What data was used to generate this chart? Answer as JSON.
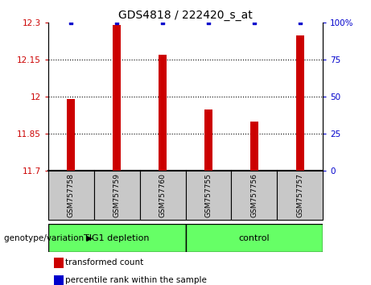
{
  "title": "GDS4818 / 222420_s_at",
  "samples": [
    "GSM757758",
    "GSM757759",
    "GSM757760",
    "GSM757755",
    "GSM757756",
    "GSM757757"
  ],
  "red_values": [
    11.99,
    12.29,
    12.17,
    11.95,
    11.9,
    12.25
  ],
  "blue_values": [
    100,
    100,
    100,
    100,
    100,
    100
  ],
  "ylim_left": [
    11.7,
    12.3
  ],
  "ylim_right": [
    0,
    100
  ],
  "yticks_left": [
    11.7,
    11.85,
    12.0,
    12.15,
    12.3
  ],
  "yticks_right": [
    0,
    25,
    50,
    75,
    100
  ],
  "ytick_labels_left": [
    "11.7",
    "11.85",
    "12",
    "12.15",
    "12.3"
  ],
  "ytick_labels_right": [
    "0",
    "25",
    "50",
    "75",
    "100%"
  ],
  "hlines": [
    11.85,
    12.0,
    12.15
  ],
  "group1_label": "TIG1 depletion",
  "group2_label": "control",
  "group_label_prefix": "genotype/variation",
  "legend_red": "transformed count",
  "legend_blue": "percentile rank within the sample",
  "bar_color": "#cc0000",
  "dot_color": "#0000cc",
  "group_color": "#66ff66",
  "tick_color_left": "#cc0000",
  "tick_color_right": "#0000cc",
  "bar_width": 0.18,
  "xticklabel_bg": "#c8c8c8",
  "baseline": 11.7,
  "n_group1": 3,
  "n_group2": 3
}
